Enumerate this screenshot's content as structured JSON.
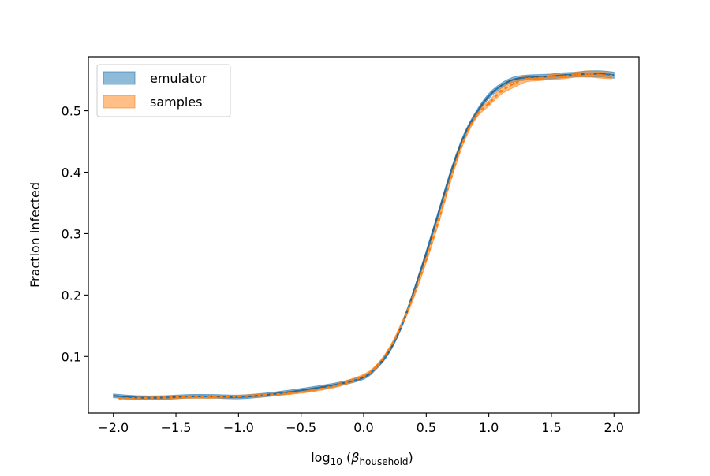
{
  "chart_data": {
    "type": "line",
    "title": "",
    "xlabel": {
      "prefix": "log",
      "sub": "10",
      "open": " (",
      "symbol": "β",
      "symbol_sub": "household",
      "close": ")"
    },
    "ylabel": "Fraction infected",
    "xlim": [
      -2.2,
      2.2
    ],
    "ylim": [
      0.008,
      0.588
    ],
    "xticks": [
      -2.0,
      -1.5,
      -1.0,
      -0.5,
      0.0,
      0.5,
      1.0,
      1.5,
      2.0
    ],
    "xtick_labels": [
      "−2.0",
      "−1.5",
      "−1.0",
      "−0.5",
      "0.0",
      "0.5",
      "1.0",
      "1.5",
      "2.0"
    ],
    "yticks": [
      0.1,
      0.2,
      0.3,
      0.4,
      0.5
    ],
    "ytick_labels": [
      "0.1",
      "0.2",
      "0.3",
      "0.4",
      "0.5"
    ],
    "grid": false,
    "legend_position": "top-left",
    "series": [
      {
        "name": "emulator",
        "color": "#1f77b4",
        "x": [
          -2.0,
          -1.8,
          -1.6,
          -1.4,
          -1.2,
          -1.0,
          -0.8,
          -0.6,
          -0.4,
          -0.2,
          0.0,
          0.1,
          0.2,
          0.3,
          0.4,
          0.5,
          0.6,
          0.7,
          0.8,
          0.9,
          1.0,
          1.1,
          1.2,
          1.3,
          1.4,
          1.5,
          1.6,
          1.7,
          1.8,
          1.9,
          2.0
        ],
        "y": [
          0.036,
          0.033,
          0.033,
          0.035,
          0.035,
          0.034,
          0.037,
          0.042,
          0.048,
          0.055,
          0.066,
          0.082,
          0.107,
          0.148,
          0.205,
          0.268,
          0.335,
          0.402,
          0.458,
          0.496,
          0.524,
          0.541,
          0.551,
          0.554,
          0.555,
          0.556,
          0.558,
          0.559,
          0.56,
          0.56,
          0.558
        ],
        "band_low": [
          0.033,
          0.03,
          0.03,
          0.032,
          0.032,
          0.031,
          0.034,
          0.039,
          0.045,
          0.052,
          0.063,
          0.079,
          0.104,
          0.145,
          0.201,
          0.264,
          0.331,
          0.398,
          0.454,
          0.492,
          0.52,
          0.537,
          0.547,
          0.55,
          0.551,
          0.552,
          0.554,
          0.555,
          0.555,
          0.555,
          0.553
        ],
        "band_high": [
          0.039,
          0.036,
          0.036,
          0.038,
          0.038,
          0.037,
          0.04,
          0.045,
          0.051,
          0.058,
          0.069,
          0.085,
          0.11,
          0.151,
          0.209,
          0.272,
          0.339,
          0.406,
          0.462,
          0.5,
          0.528,
          0.545,
          0.555,
          0.558,
          0.559,
          0.56,
          0.562,
          0.563,
          0.565,
          0.565,
          0.563
        ]
      },
      {
        "name": "samples",
        "color": "#ff7f0e",
        "x": [
          -1.95,
          -1.8,
          -1.6,
          -1.4,
          -1.2,
          -1.0,
          -0.8,
          -0.6,
          -0.4,
          -0.2,
          0.0,
          0.1,
          0.2,
          0.3,
          0.4,
          0.5,
          0.6,
          0.7,
          0.8,
          0.9,
          1.0,
          1.1,
          1.2,
          1.3,
          1.4,
          1.5,
          1.6,
          1.7,
          1.8,
          1.9,
          1.98
        ],
        "y": [
          0.032,
          0.032,
          0.033,
          0.034,
          0.034,
          0.035,
          0.037,
          0.04,
          0.045,
          0.054,
          0.068,
          0.083,
          0.11,
          0.15,
          0.2,
          0.258,
          0.322,
          0.392,
          0.452,
          0.492,
          0.512,
          0.532,
          0.544,
          0.552,
          0.553,
          0.555,
          0.556,
          0.559,
          0.56,
          0.558,
          0.557
        ],
        "band_low": [
          0.03,
          0.03,
          0.031,
          0.032,
          0.032,
          0.033,
          0.035,
          0.038,
          0.043,
          0.051,
          0.065,
          0.08,
          0.107,
          0.146,
          0.195,
          0.253,
          0.317,
          0.388,
          0.448,
          0.488,
          0.508,
          0.527,
          0.538,
          0.547,
          0.549,
          0.551,
          0.552,
          0.555,
          0.555,
          0.553,
          0.552
        ],
        "band_high": [
          0.034,
          0.034,
          0.035,
          0.036,
          0.036,
          0.037,
          0.039,
          0.042,
          0.047,
          0.057,
          0.071,
          0.086,
          0.113,
          0.154,
          0.205,
          0.263,
          0.327,
          0.396,
          0.456,
          0.496,
          0.516,
          0.537,
          0.55,
          0.557,
          0.557,
          0.559,
          0.56,
          0.563,
          0.565,
          0.563,
          0.562
        ]
      }
    ]
  }
}
